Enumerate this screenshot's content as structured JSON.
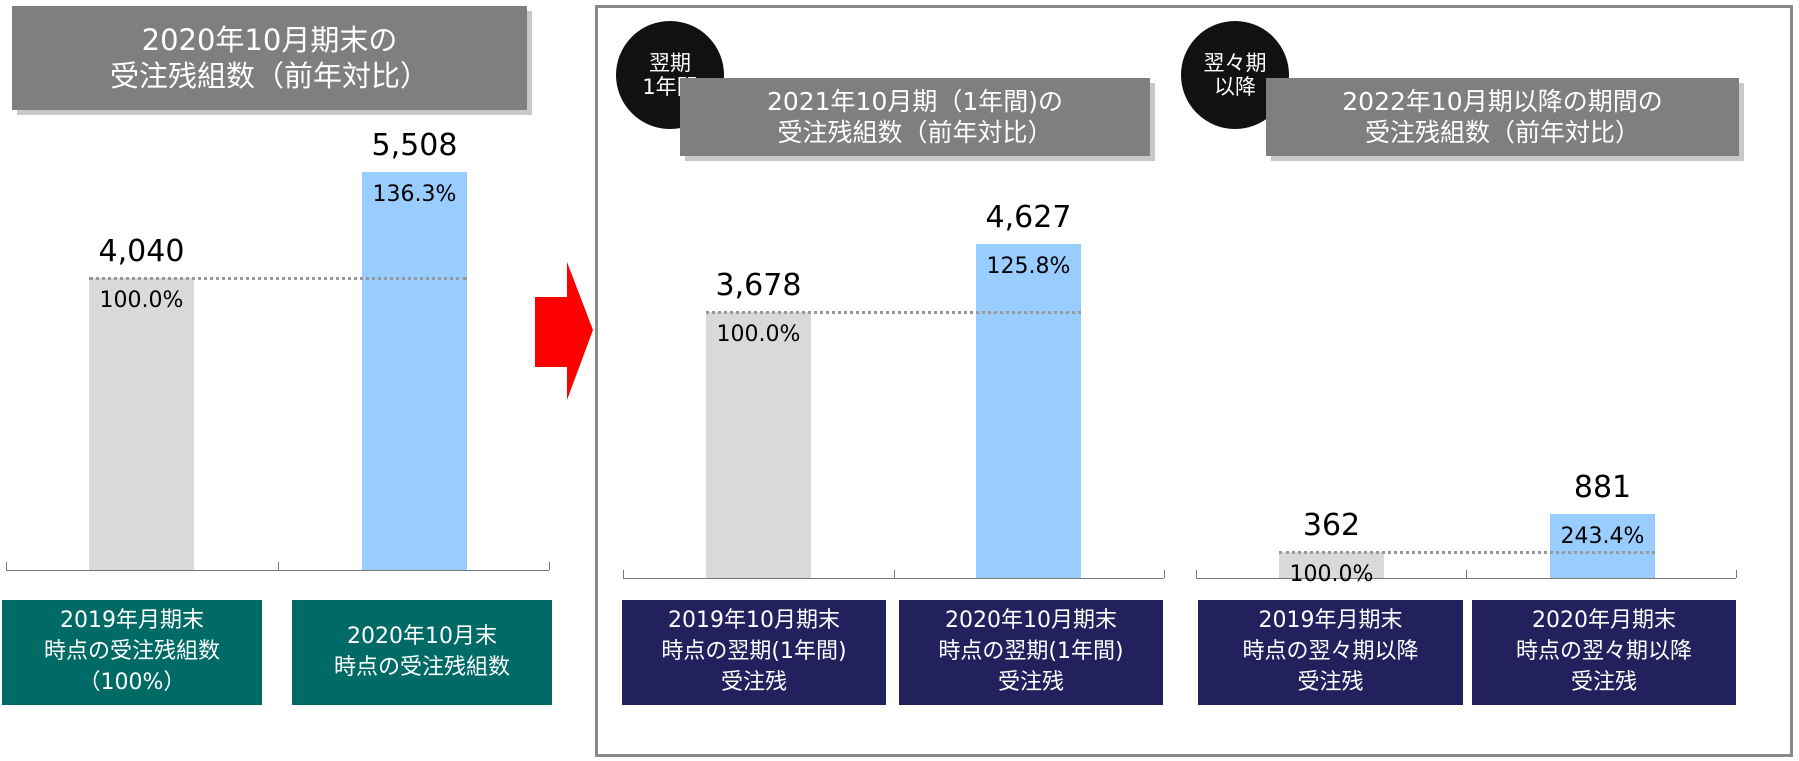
{
  "chart_data": [
    {
      "type": "bar",
      "title": "2020年10月期末の\n受注残組数（前年対比）",
      "categories": [
        "2019年月期末\n時点の受注残組数\n（100%）",
        "2020年10月末\n時点の受注残組数"
      ],
      "values": [
        4040,
        5508
      ],
      "value_labels": [
        "4,040",
        "5,508"
      ],
      "ratio_labels": [
        "100.0%",
        "136.3%"
      ],
      "colors": [
        "#d9d9d9",
        "#99ccff"
      ],
      "label_color": "#006b66"
    },
    {
      "type": "bar",
      "badge": "翌期\n1年間",
      "title": "2021年10月期（1年間)の\n受注残組数（前年対比）",
      "categories": [
        "2019年10月期末\n時点の翌期(1年間)\n受注残",
        "2020年10月期末\n時点の翌期(1年間)\n受注残"
      ],
      "values": [
        3678,
        4627
      ],
      "value_labels": [
        "3,678",
        "4,627"
      ],
      "ratio_labels": [
        "100.0%",
        "125.8%"
      ],
      "colors": [
        "#d9d9d9",
        "#99ccff"
      ],
      "label_color": "#22215e"
    },
    {
      "type": "bar",
      "badge": "翌々期\n以降",
      "title": "2022年10月期以降の期間の\n受注残組数（前年対比）",
      "categories": [
        "2019年月期末\n時点の翌々期以降\n受注残",
        "2020年月期末\n時点の翌々期以降\n受注残"
      ],
      "values": [
        362,
        881
      ],
      "ratio_labels": [
        "100.0%",
        "243.4%"
      ],
      "colors": [
        "#d9d9d9",
        "#99ccff"
      ],
      "label_color": "#22215e"
    }
  ]
}
